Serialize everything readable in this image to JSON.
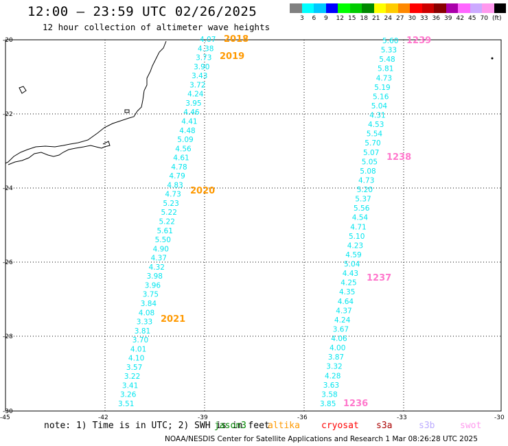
{
  "header": {
    "title": "12:00 – 23:59 UTC 02/26/2025",
    "subtitle": "12 hour collection of altimeter wave heights"
  },
  "colorbar": {
    "colors": [
      "#808080",
      "#00ffff",
      "#00c8ff",
      "#0000ff",
      "#00ff00",
      "#00cc00",
      "#008800",
      "#ffff00",
      "#ffcc00",
      "#ff8800",
      "#ff0000",
      "#cc0000",
      "#880000",
      "#aa00aa",
      "#ff66ff",
      "#ccaaff",
      "#ff99ee",
      "#000000"
    ],
    "ticks": [
      "3",
      "6",
      "9",
      "12",
      "15",
      "18",
      "21",
      "24",
      "27",
      "30",
      "33",
      "36",
      "39",
      "42",
      "45",
      "70",
      "(ft)"
    ]
  },
  "axes": {
    "lat_labels": [
      "-20",
      "-22",
      "-24",
      "-26",
      "-28",
      "-30"
    ],
    "lon_labels": [
      "-45",
      "-42",
      "-39",
      "-36",
      "-33",
      "-30"
    ]
  },
  "passes": [
    {
      "label": "2018",
      "color": "#ff9900"
    },
    {
      "label": "2019",
      "color": "#ff9900"
    },
    {
      "label": "2020",
      "color": "#ff9900"
    },
    {
      "label": "2021",
      "color": "#ff9900"
    },
    {
      "label": "1239",
      "color": "#ff77cc"
    },
    {
      "label": "1238",
      "color": "#ff77cc"
    },
    {
      "label": "1237",
      "color": "#ff77cc"
    },
    {
      "label": "1236",
      "color": "#ff77cc"
    }
  ],
  "track_west": [
    "4.07",
    "4.38",
    "3.73",
    "3.90",
    "3.43",
    "3.72",
    "4.24",
    "3.95",
    "4.46",
    "4.41",
    "4.48",
    "5.09",
    "4.56",
    "4.61",
    "4.78",
    "4.79",
    "4.83",
    "4.73",
    "5.23",
    "5.22",
    "5.22",
    "5.61",
    "5.50",
    "4.90",
    "4.37",
    "4.32",
    "3.98",
    "3.96",
    "3.75",
    "3.84",
    "4.08",
    "3.33",
    "3.81",
    "3.70",
    "4.01",
    "4.10",
    "3.57",
    "3.22",
    "3.41",
    "3.26",
    "3.51"
  ],
  "track_east": [
    "5.60",
    "5.33",
    "5.48",
    "5.81",
    "4.73",
    "5.19",
    "5.16",
    "5.04",
    "4.31",
    "4.53",
    "5.54",
    "5.70",
    "5.07",
    "5.05",
    "5.08",
    "4.73",
    "5.20",
    "5.37",
    "5.56",
    "4.54",
    "4.71",
    "5.10",
    "4.23",
    "4.59",
    "5.04",
    "4.43",
    "4.25",
    "4.35",
    "4.64",
    "4.37",
    "4.24",
    "3.67",
    "4.06",
    "4.00",
    "3.87",
    "3.32",
    "4.28",
    "3.63",
    "3.58",
    "3.85"
  ],
  "note": "note: 1) Time is in UTC; 2) SWH is in feet",
  "satellites": [
    {
      "name": "jason3",
      "color": "#008800"
    },
    {
      "name": "altika",
      "color": "#ff9900"
    },
    {
      "name": "cryosat",
      "color": "#ff0000"
    },
    {
      "name": "s3a",
      "color": "#aa0000"
    },
    {
      "name": "s3b",
      "color": "#bbaaff"
    },
    {
      "name": "swot",
      "color": "#ff99ee"
    }
  ],
  "footer": "NOAA/NESDIS Center for Satellite Applications and Research    1 Mar 08:26:28 UTC 2025"
}
